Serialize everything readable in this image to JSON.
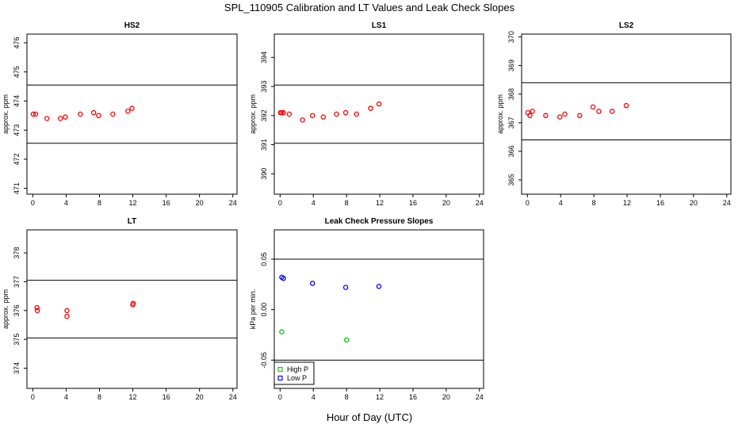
{
  "figure": {
    "title": "SPL_110905  Calibration and LT Values and Leak Check Slopes",
    "xlabel": "Hour of Day (UTC)"
  },
  "chart_data": [
    {
      "type": "scatter",
      "title": "HS2",
      "ylabel": "approx. ppm",
      "xlim": [
        -0.7,
        24.5
      ],
      "ylim": [
        470.8,
        476.3
      ],
      "xticks": [
        0,
        4,
        8,
        12,
        16,
        20,
        24
      ],
      "yticks": [
        471,
        472,
        473,
        474,
        475,
        476
      ],
      "hlines": [
        474.55,
        472.55
      ],
      "series": [
        {
          "color": "#ff0000",
          "x": [
            0.05,
            0.35,
            1.7,
            3.3,
            3.9,
            5.7,
            7.3,
            7.9,
            9.6,
            11.4,
            11.9
          ],
          "y": [
            473.55,
            473.55,
            473.4,
            473.4,
            473.45,
            473.55,
            473.6,
            473.5,
            473.55,
            473.65,
            473.75
          ]
        }
      ]
    },
    {
      "type": "scatter",
      "title": "LS1",
      "ylabel": "approx. ppm",
      "xlim": [
        -0.7,
        24.5
      ],
      "ylim": [
        389.3,
        394.8
      ],
      "xticks": [
        0,
        4,
        8,
        12,
        16,
        20,
        24
      ],
      "yticks": [
        390,
        391,
        392,
        393,
        394
      ],
      "hlines": [
        393.05,
        391.05
      ],
      "series": [
        {
          "color": "#ff0000",
          "x": [
            0.05,
            0.2,
            0.4,
            1.1,
            2.7,
            3.9,
            5.2,
            6.8,
            7.9,
            9.2,
            10.9,
            11.9
          ],
          "y": [
            392.1,
            392.1,
            392.1,
            392.05,
            391.85,
            392.0,
            391.95,
            392.05,
            392.1,
            392.05,
            392.25,
            392.4
          ]
        }
      ]
    },
    {
      "type": "scatter",
      "title": "LS2",
      "ylabel": "approx. ppm",
      "xlim": [
        -0.7,
        24.5
      ],
      "ylim": [
        364.5,
        370.1
      ],
      "xticks": [
        0,
        4,
        8,
        12,
        16,
        20,
        24
      ],
      "yticks": [
        365,
        366,
        367,
        368,
        369,
        370
      ],
      "hlines": [
        368.4,
        366.4
      ],
      "series": [
        {
          "color": "#ff0000",
          "x": [
            0.05,
            0.3,
            0.6,
            2.2,
            3.9,
            4.5,
            6.3,
            7.9,
            8.6,
            10.2,
            11.9
          ],
          "y": [
            367.35,
            367.25,
            367.4,
            367.25,
            367.2,
            367.3,
            367.25,
            367.55,
            367.4,
            367.4,
            367.6
          ]
        }
      ]
    },
    {
      "type": "scatter",
      "title": "LT",
      "ylabel": "approx. ppm",
      "xlim": [
        -0.7,
        24.5
      ],
      "ylim": [
        373.3,
        378.8
      ],
      "xticks": [
        0,
        4,
        8,
        12,
        16,
        20,
        24
      ],
      "yticks": [
        374,
        375,
        376,
        377,
        378
      ],
      "hlines": [
        377.05,
        375.05
      ],
      "series": [
        {
          "color": "#ff0000",
          "x": [
            0.5,
            0.55,
            4.1,
            4.1,
            12.0,
            12.05
          ],
          "y": [
            376.1,
            376.0,
            376.0,
            375.8,
            376.2,
            376.25
          ]
        }
      ]
    },
    {
      "type": "scatter",
      "title": "Leak Check Pressure Slopes",
      "ylabel": "kPa per min.",
      "xlim": [
        -0.7,
        24.5
      ],
      "ylim": [
        -0.078,
        0.079
      ],
      "xticks": [
        0,
        4,
        8,
        12,
        16,
        20,
        24
      ],
      "yticks": [
        -0.05,
        0.0,
        0.05
      ],
      "ytick_labels": [
        "-0.05",
        "0.00",
        "0.05"
      ],
      "hlines": [
        0.05,
        -0.05
      ],
      "legend": {
        "position": "bottom-left"
      },
      "series": [
        {
          "name": "High P",
          "color": "#00cc00",
          "x": [
            0.2,
            8.0
          ],
          "y": [
            -0.022,
            -0.03
          ]
        },
        {
          "name": "Low P",
          "color": "#0000ff",
          "x": [
            0.2,
            0.4,
            3.9,
            7.9,
            11.9
          ],
          "y": [
            0.032,
            0.031,
            0.026,
            0.022,
            0.023
          ]
        }
      ]
    }
  ]
}
